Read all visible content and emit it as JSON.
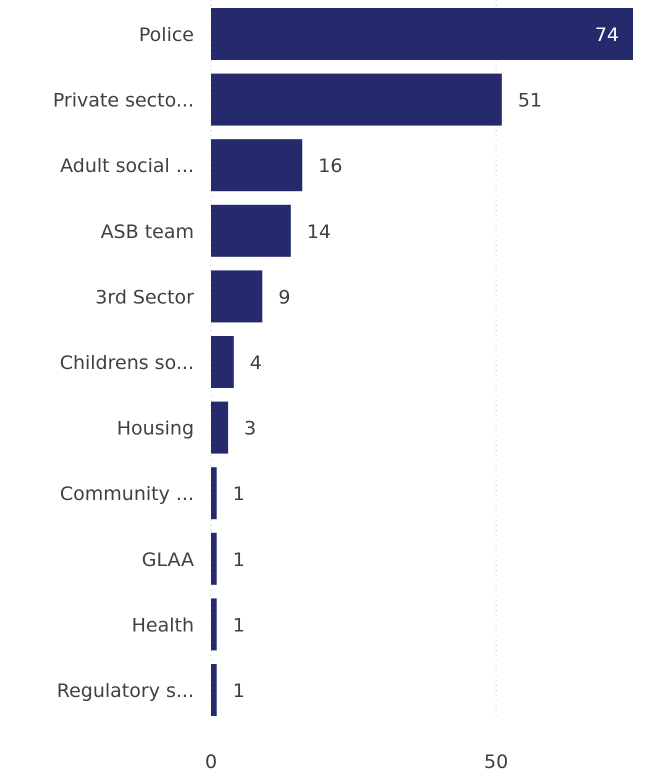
{
  "chart_data": {
    "type": "bar",
    "orientation": "horizontal",
    "categories": [
      "Police",
      "Private secto...",
      "Adult social ...",
      "ASB team",
      "3rd Sector",
      "Childrens so...",
      "Housing",
      "Community ...",
      "GLAA",
      "Health",
      "Regulatory s..."
    ],
    "values": [
      74,
      51,
      16,
      14,
      9,
      4,
      3,
      1,
      1,
      1,
      1
    ],
    "xticks": [
      0,
      50
    ],
    "xlim": [
      0,
      74
    ],
    "grid": true,
    "colors": {
      "bar": "#252a6c",
      "text": "#404040",
      "inside_label": "#ffffff"
    },
    "title": "",
    "xlabel": "",
    "ylabel": ""
  }
}
